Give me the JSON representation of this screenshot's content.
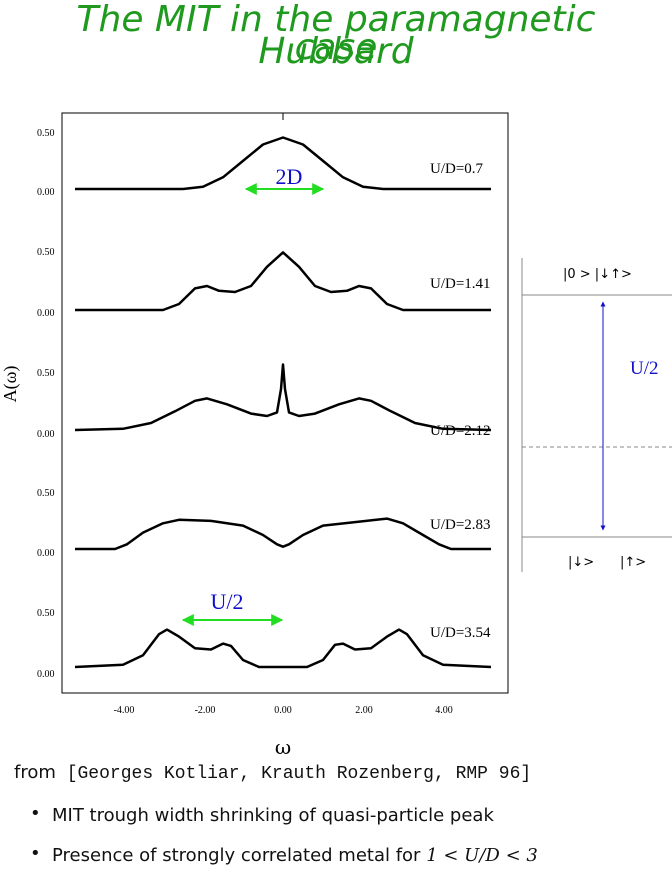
{
  "title": {
    "line1": "The MIT in the paramagnetic Hubbard",
    "line2": "case"
  },
  "chart_data": {
    "type": "line",
    "ylabel": "A(ω)",
    "xlabel": "ω",
    "x_ticks": [
      "-4.00",
      "-2.00",
      "0.00",
      "2.00",
      "4.00"
    ],
    "panels": [
      {
        "label": "U/D=0.7",
        "y_ticks": [
          "0.50",
          "0.00"
        ],
        "points": [
          [
            -5.2,
            0.0
          ],
          [
            -2.5,
            0.0
          ],
          [
            -2.0,
            0.02
          ],
          [
            -1.5,
            0.1
          ],
          [
            -1.0,
            0.24
          ],
          [
            -0.5,
            0.38
          ],
          [
            0,
            0.44
          ],
          [
            0.5,
            0.38
          ],
          [
            1.0,
            0.24
          ],
          [
            1.5,
            0.1
          ],
          [
            2.0,
            0.02
          ],
          [
            2.5,
            0.0
          ],
          [
            5.2,
            0.0
          ]
        ]
      },
      {
        "label": "U/D=1.41",
        "y_ticks": [
          "0.50",
          "0.00"
        ],
        "points": [
          [
            -5.2,
            0.0
          ],
          [
            -3.0,
            0.0
          ],
          [
            -2.6,
            0.05
          ],
          [
            -2.2,
            0.18
          ],
          [
            -1.9,
            0.2
          ],
          [
            -1.6,
            0.16
          ],
          [
            -1.2,
            0.15
          ],
          [
            -0.8,
            0.2
          ],
          [
            -0.4,
            0.36
          ],
          [
            0,
            0.48
          ],
          [
            0.4,
            0.36
          ],
          [
            0.8,
            0.2
          ],
          [
            1.2,
            0.15
          ],
          [
            1.6,
            0.16
          ],
          [
            1.9,
            0.2
          ],
          [
            2.2,
            0.18
          ],
          [
            2.6,
            0.05
          ],
          [
            3.0,
            0.0
          ],
          [
            5.2,
            0.0
          ]
        ]
      },
      {
        "label": "U/D=2.12",
        "y_ticks": [
          "0.50",
          "0.00"
        ],
        "points": [
          [
            -5.2,
            0.0
          ],
          [
            -4.0,
            0.01
          ],
          [
            -3.3,
            0.06
          ],
          [
            -2.7,
            0.16
          ],
          [
            -2.2,
            0.25
          ],
          [
            -1.9,
            0.27
          ],
          [
            -1.4,
            0.22
          ],
          [
            -0.8,
            0.14
          ],
          [
            -0.4,
            0.12
          ],
          [
            -0.15,
            0.15
          ],
          [
            -0.05,
            0.35
          ],
          [
            0,
            0.56
          ],
          [
            0.05,
            0.35
          ],
          [
            0.15,
            0.15
          ],
          [
            0.4,
            0.12
          ],
          [
            0.8,
            0.14
          ],
          [
            1.4,
            0.22
          ],
          [
            1.9,
            0.27
          ],
          [
            2.2,
            0.25
          ],
          [
            2.7,
            0.16
          ],
          [
            3.3,
            0.06
          ],
          [
            4.0,
            0.01
          ],
          [
            5.2,
            0.0
          ]
        ]
      },
      {
        "label": "U/D=2.83",
        "y_ticks": [
          "0.50",
          "0.00"
        ],
        "points": [
          [
            -5.2,
            0.0
          ],
          [
            -4.2,
            0.0
          ],
          [
            -3.9,
            0.04
          ],
          [
            -3.5,
            0.14
          ],
          [
            -3.0,
            0.22
          ],
          [
            -2.6,
            0.25
          ],
          [
            -1.8,
            0.24
          ],
          [
            -1.0,
            0.2
          ],
          [
            -0.5,
            0.12
          ],
          [
            -0.15,
            0.04
          ],
          [
            0,
            0.02
          ],
          [
            0.15,
            0.04
          ],
          [
            0.5,
            0.12
          ],
          [
            1.0,
            0.2
          ],
          [
            1.8,
            0.23
          ],
          [
            2.6,
            0.26
          ],
          [
            3.0,
            0.22
          ],
          [
            3.5,
            0.12
          ],
          [
            3.9,
            0.04
          ],
          [
            4.2,
            0.0
          ],
          [
            5.2,
            0.0
          ]
        ]
      },
      {
        "label": "U/D=3.54",
        "y_ticks": [
          "0.50",
          "0.00"
        ],
        "points": [
          [
            -5.2,
            0.0
          ],
          [
            -4.0,
            0.02
          ],
          [
            -3.5,
            0.1
          ],
          [
            -3.1,
            0.28
          ],
          [
            -2.9,
            0.32
          ],
          [
            -2.6,
            0.26
          ],
          [
            -2.2,
            0.16
          ],
          [
            -1.8,
            0.15
          ],
          [
            -1.5,
            0.2
          ],
          [
            -1.3,
            0.18
          ],
          [
            -1.0,
            0.06
          ],
          [
            -0.6,
            0.0
          ],
          [
            0.6,
            0.0
          ],
          [
            1.0,
            0.06
          ],
          [
            1.3,
            0.19
          ],
          [
            1.5,
            0.2
          ],
          [
            1.8,
            0.15
          ],
          [
            2.2,
            0.16
          ],
          [
            2.6,
            0.26
          ],
          [
            2.9,
            0.32
          ],
          [
            3.1,
            0.28
          ],
          [
            3.5,
            0.1
          ],
          [
            4.0,
            0.02
          ],
          [
            5.2,
            0.0
          ]
        ]
      }
    ],
    "annotations": {
      "top_arrow_label": "2D",
      "bottom_arrow_label": "U/2"
    }
  },
  "level_diagram": {
    "upper_state": "|0 >  |↓↑>",
    "gap_label": "U/2",
    "lower_state_left": "|↓>",
    "lower_state_right": "|↑>"
  },
  "source": {
    "prefix": "from",
    "citation": "[Georges Kotliar, Krauth Rozenberg, RMP 96]"
  },
  "bullets": {
    "b1": "MIT trough width shrinking of quasi-particle peak",
    "b2_text": "Presence of strongly correlated metal for",
    "b2_math": "1 < U/D < 3"
  },
  "colors": {
    "title": "#1f9a1f",
    "arrow_green": "#22dd22",
    "label_blue": "#1010cc"
  }
}
